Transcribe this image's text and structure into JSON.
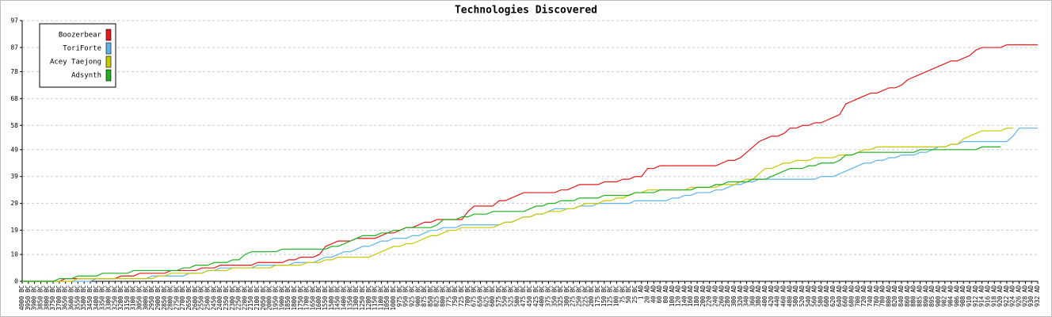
{
  "chart_data": {
    "type": "line",
    "title": "Technologies Discovered",
    "categories": [
      "4000 BC",
      "3950 BC",
      "3900 BC",
      "3850 BC",
      "3800 BC",
      "3750 BC",
      "3700 BC",
      "3650 BC",
      "3600 BC",
      "3550 BC",
      "3500 BC",
      "3450 BC",
      "3400 BC",
      "3350 BC",
      "3300 BC",
      "3250 BC",
      "3200 BC",
      "3150 BC",
      "3100 BC",
      "3050 BC",
      "3000 BC",
      "2950 BC",
      "2900 BC",
      "2850 BC",
      "2800 BC",
      "2750 BC",
      "2700 BC",
      "2650 BC",
      "2600 BC",
      "2550 BC",
      "2500 BC",
      "2450 BC",
      "2400 BC",
      "2350 BC",
      "2300 BC",
      "2250 BC",
      "2200 BC",
      "2150 BC",
      "2100 BC",
      "2050 BC",
      "2000 BC",
      "1950 BC",
      "1900 BC",
      "1850 BC",
      "1800 BC",
      "1750 BC",
      "1700 BC",
      "1650 BC",
      "1600 BC",
      "1550 BC",
      "1500 BC",
      "1450 BC",
      "1400 BC",
      "1350 BC",
      "1300 BC",
      "1250 BC",
      "1200 BC",
      "1150 BC",
      "1100 BC",
      "1050 BC",
      "1000 BC",
      "975 BC",
      "950 BC",
      "925 BC",
      "900 BC",
      "875 BC",
      "850 BC",
      "825 BC",
      "800 BC",
      "775 BC",
      "750 BC",
      "725 BC",
      "700 BC",
      "675 BC",
      "650 BC",
      "625 BC",
      "600 BC",
      "575 BC",
      "550 BC",
      "525 BC",
      "500 BC",
      "475 BC",
      "450 BC",
      "425 BC",
      "400 BC",
      "375 BC",
      "350 BC",
      "325 BC",
      "300 BC",
      "275 BC",
      "250 BC",
      "225 BC",
      "200 BC",
      "175 BC",
      "150 BC",
      "125 BC",
      "100 BC",
      "75 BC",
      "50 BC",
      "25 BC",
      "1 AD",
      "20 AD",
      "40 AD",
      "60 AD",
      "80 AD",
      "100 AD",
      "120 AD",
      "140 AD",
      "160 AD",
      "180 AD",
      "200 AD",
      "220 AD",
      "240 AD",
      "260 AD",
      "280 AD",
      "300 AD",
      "320 AD",
      "340 AD",
      "360 AD",
      "380 AD",
      "400 AD",
      "420 AD",
      "440 AD",
      "460 AD",
      "480 AD",
      "500 AD",
      "520 AD",
      "540 AD",
      "560 AD",
      "580 AD",
      "600 AD",
      "620 AD",
      "640 AD",
      "660 AD",
      "680 AD",
      "700 AD",
      "720 AD",
      "740 AD",
      "760 AD",
      "780 AD",
      "800 AD",
      "820 AD",
      "840 AD",
      "860 AD",
      "880 AD",
      "885 AD",
      "890 AD",
      "895 AD",
      "900 AD",
      "902 AD",
      "904 AD",
      "906 AD",
      "908 AD",
      "910 AD",
      "912 AD",
      "914 AD",
      "916 AD",
      "918 AD",
      "920 AD",
      "922 AD",
      "924 AD",
      "926 AD",
      "928 AD",
      "930 AD",
      "932 AD"
    ],
    "series": [
      {
        "name": "Boozerbear",
        "color": "#e31a1c",
        "values": [
          0,
          0,
          0,
          0,
          0,
          0,
          0,
          1,
          1,
          1,
          1,
          1,
          1,
          1,
          1,
          1,
          2,
          2,
          2,
          3,
          3,
          3,
          3,
          3,
          4,
          4,
          4,
          4,
          4,
          5,
          5,
          5,
          6,
          6,
          6,
          6,
          6,
          6,
          7,
          7,
          7,
          7,
          7,
          8,
          8,
          9,
          9,
          9,
          10,
          13,
          14,
          15,
          15,
          15,
          16,
          16,
          16,
          16,
          17,
          18,
          18,
          19,
          20,
          20,
          21,
          22,
          22,
          23,
          23,
          23,
          23,
          23,
          26,
          28,
          28,
          28,
          28,
          30,
          30,
          31,
          32,
          33,
          33,
          33,
          33,
          33,
          33,
          34,
          34,
          35,
          36,
          36,
          36,
          36,
          37,
          37,
          37,
          38,
          38,
          39,
          39,
          42,
          42,
          43,
          43,
          43,
          43,
          43,
          43,
          43,
          43,
          43,
          43,
          44,
          45,
          45,
          46,
          48,
          50,
          52,
          53,
          54,
          54,
          55,
          57,
          57,
          58,
          58,
          59,
          59,
          60,
          61,
          62,
          66,
          67,
          68,
          69,
          70,
          70,
          71,
          72,
          72,
          73,
          75,
          76,
          77,
          78,
          79,
          80,
          81,
          82,
          82,
          83,
          84,
          86,
          87,
          87,
          87,
          87,
          88,
          88,
          88,
          88,
          88,
          88
        ]
      },
      {
        "name": "ToriForte",
        "color": "#5fb4e8",
        "values": [
          0,
          0,
          0,
          0,
          0,
          0,
          0,
          0,
          0,
          0,
          0,
          0,
          1,
          1,
          1,
          1,
          1,
          1,
          1,
          1,
          1,
          2,
          2,
          2,
          2,
          2,
          2,
          3,
          3,
          3,
          4,
          4,
          5,
          5,
          5,
          5,
          5,
          5,
          6,
          6,
          6,
          6,
          6,
          6,
          7,
          7,
          7,
          7,
          8,
          9,
          9,
          10,
          11,
          11,
          12,
          13,
          13,
          14,
          15,
          15,
          16,
          16,
          16,
          17,
          17,
          18,
          19,
          19,
          20,
          20,
          20,
          21,
          21,
          21,
          21,
          21,
          21,
          21,
          22,
          22,
          23,
          24,
          24,
          25,
          25,
          26,
          27,
          27,
          27,
          27,
          28,
          28,
          28,
          29,
          29,
          29,
          29,
          29,
          29,
          30,
          30,
          30,
          30,
          30,
          30,
          31,
          31,
          32,
          32,
          33,
          33,
          33,
          34,
          34,
          35,
          36,
          36,
          37,
          37,
          38,
          38,
          38,
          38,
          38,
          38,
          38,
          38,
          38,
          38,
          39,
          39,
          39,
          40,
          41,
          42,
          43,
          44,
          44,
          45,
          45,
          46,
          46,
          47,
          47,
          47,
          48,
          48,
          49,
          50,
          50,
          51,
          51,
          52,
          52,
          52,
          52,
          52,
          52,
          52,
          52,
          54,
          57,
          57,
          57,
          57
        ]
      },
      {
        "name": "Acey Taejong",
        "color": "#c8c800",
        "values": [
          0,
          0,
          0,
          0,
          0,
          0,
          0,
          0,
          0,
          1,
          1,
          1,
          1,
          1,
          1,
          1,
          1,
          1,
          1,
          1,
          1,
          1,
          2,
          2,
          3,
          3,
          3,
          3,
          3,
          3,
          4,
          4,
          4,
          4,
          5,
          5,
          5,
          5,
          5,
          5,
          5,
          6,
          6,
          6,
          6,
          6,
          7,
          7,
          7,
          8,
          8,
          9,
          9,
          9,
          9,
          9,
          9,
          10,
          11,
          12,
          13,
          13,
          14,
          14,
          15,
          16,
          17,
          17,
          18,
          19,
          19,
          20,
          20,
          20,
          20,
          20,
          20,
          21,
          22,
          22,
          23,
          24,
          24,
          25,
          25,
          26,
          26,
          26,
          27,
          27,
          28,
          29,
          29,
          29,
          30,
          30,
          31,
          31,
          32,
          33,
          33,
          34,
          34,
          34,
          34,
          34,
          34,
          34,
          35,
          35,
          35,
          35,
          35,
          36,
          36,
          36,
          37,
          38,
          38,
          40,
          42,
          42,
          43,
          44,
          44,
          45,
          45,
          45,
          46,
          46,
          46,
          46,
          47,
          47,
          47,
          48,
          49,
          49,
          50,
          50,
          50,
          50,
          50,
          50,
          50,
          50,
          50,
          50,
          50,
          50,
          51,
          51,
          53,
          54,
          55,
          56,
          56,
          56,
          56,
          57,
          57,
          null,
          null,
          null,
          null
        ]
      },
      {
        "name": "Adsynth",
        "color": "#20b020",
        "values": [
          0,
          0,
          0,
          0,
          0,
          0,
          1,
          1,
          1,
          2,
          2,
          2,
          2,
          3,
          3,
          3,
          3,
          3,
          4,
          4,
          4,
          4,
          4,
          4,
          4,
          4,
          5,
          5,
          6,
          6,
          6,
          7,
          7,
          7,
          8,
          8,
          10,
          11,
          11,
          11,
          11,
          11,
          12,
          12,
          12,
          12,
          12,
          12,
          12,
          12,
          13,
          13,
          14,
          15,
          16,
          17,
          17,
          17,
          18,
          18,
          19,
          19,
          20,
          20,
          20,
          20,
          20,
          21,
          23,
          23,
          23,
          24,
          24,
          25,
          25,
          25,
          26,
          26,
          26,
          26,
          26,
          26,
          27,
          28,
          28,
          29,
          29,
          30,
          30,
          30,
          31,
          31,
          31,
          31,
          32,
          32,
          32,
          32,
          32,
          33,
          33,
          33,
          33,
          34,
          34,
          34,
          34,
          34,
          34,
          35,
          35,
          35,
          36,
          36,
          37,
          37,
          37,
          37,
          38,
          38,
          38,
          39,
          40,
          41,
          42,
          42,
          42,
          43,
          43,
          44,
          44,
          44,
          45,
          47,
          47,
          48,
          48,
          48,
          48,
          48,
          48,
          48,
          48,
          48,
          48,
          49,
          49,
          49,
          49,
          49,
          49,
          49,
          49,
          49,
          49,
          50,
          50,
          50,
          50,
          null,
          null,
          null,
          null,
          null,
          null
        ]
      }
    ],
    "ylim": [
      0,
      97
    ],
    "yticks": [
      0,
      10,
      19,
      29,
      39,
      49,
      58,
      68,
      78,
      87,
      97
    ],
    "grid": true,
    "legend": "top-left"
  }
}
